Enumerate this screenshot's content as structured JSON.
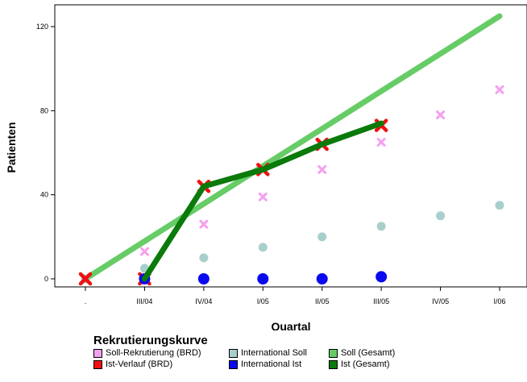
{
  "chart_data": {
    "type": "scatter",
    "categories": [
      ".",
      "III/04",
      "IV/04",
      "I/05",
      "II/05",
      "III/05",
      "IV/05",
      "I/06"
    ],
    "xlabel": "Quartal",
    "ylabel": "Patienten",
    "ylim": [
      -5,
      130
    ],
    "yticks": [
      0,
      40,
      80,
      120
    ],
    "grid": false,
    "legend_title": "Rekrutierungskurve",
    "legend_placement": "bottom",
    "series": [
      {
        "name": "Soll-Rekrutierung (BRD)",
        "mark": "x",
        "color": "#f5a0f0",
        "values": [
          0,
          13,
          26,
          39,
          52,
          65,
          78,
          90
        ]
      },
      {
        "name": "International Soll",
        "mark": "dot",
        "color": "#a8cfcc",
        "values": [
          0,
          5,
          10,
          15,
          20,
          25,
          30,
          35
        ]
      },
      {
        "name": "Soll (Gesamt)",
        "mark": "line",
        "color": "#66cc66",
        "values": [
          0,
          17.9,
          35.7,
          53.6,
          71.4,
          89.3,
          107.1,
          125
        ]
      },
      {
        "name": "Ist-Verlauf (BRD)",
        "mark": "x",
        "color": "#ee1111",
        "values": [
          0,
          0,
          44,
          52,
          64,
          73,
          null,
          null
        ]
      },
      {
        "name": "International Ist",
        "mark": "dot",
        "color": "#0a0aee",
        "values": [
          null,
          0,
          0,
          0,
          0,
          1,
          null,
          null
        ]
      },
      {
        "name": "Ist (Gesamt)",
        "mark": "line",
        "color": "#0a7a0a",
        "values": [
          null,
          0,
          44,
          52,
          64,
          74,
          null,
          null
        ]
      }
    ]
  }
}
